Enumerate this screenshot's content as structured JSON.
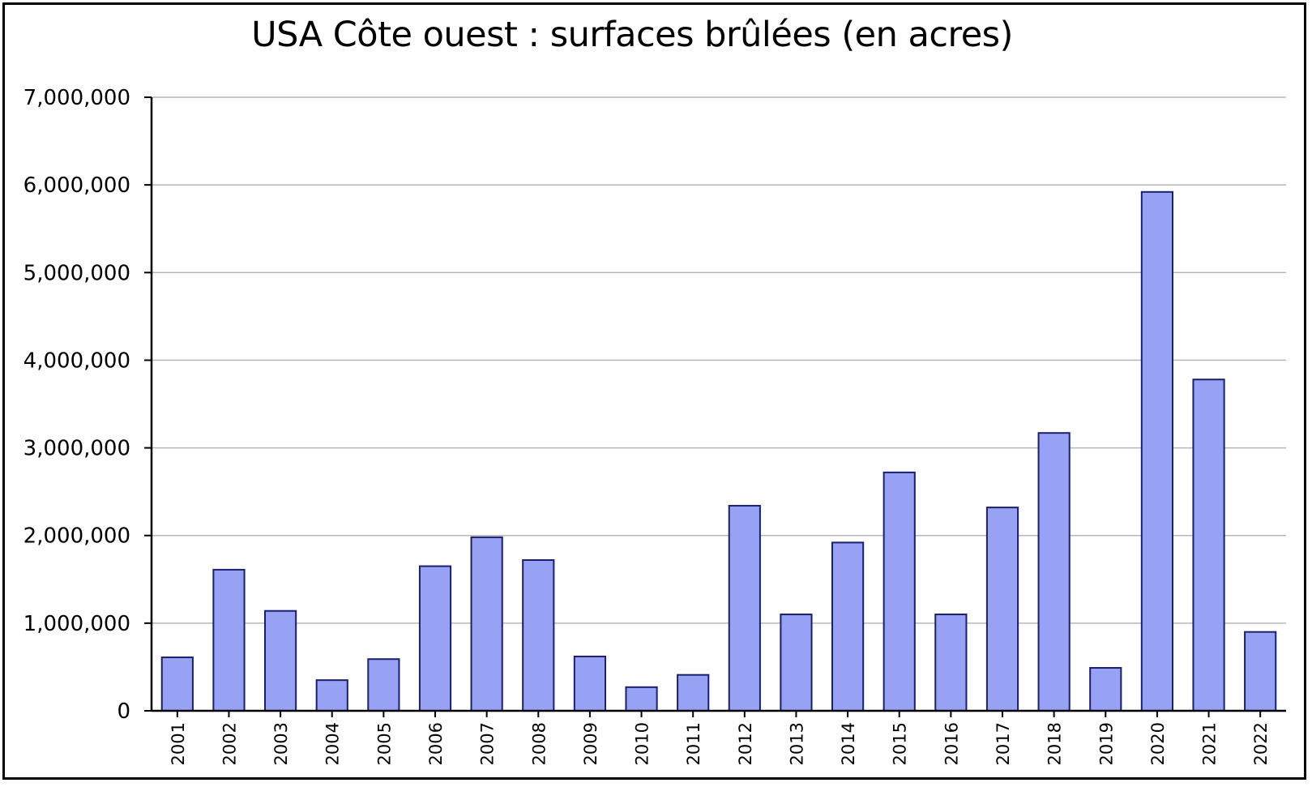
{
  "chart_data": {
    "type": "bar",
    "title": "USA Côte ouest : surfaces brûlées (en acres)",
    "xlabel": "",
    "ylabel": "",
    "ylim": [
      0,
      7000000
    ],
    "grid": true,
    "legend": "none",
    "yticks": [
      "0",
      "1,000,000",
      "2,000,000",
      "3,000,000",
      "4,000,000",
      "5,000,000",
      "6,000,000",
      "7,000,000"
    ],
    "categories": [
      "2001",
      "2002",
      "2003",
      "2004",
      "2005",
      "2006",
      "2007",
      "2008",
      "2009",
      "2010",
      "2011",
      "2012",
      "2013",
      "2014",
      "2015",
      "2016",
      "2017",
      "2018",
      "2019",
      "2020",
      "2021",
      "2022"
    ],
    "values": [
      610000,
      1610000,
      1140000,
      350000,
      590000,
      1650000,
      1980000,
      1720000,
      620000,
      270000,
      410000,
      2340000,
      1100000,
      1920000,
      2720000,
      1100000,
      2320000,
      3170000,
      490000,
      5920000,
      3780000,
      900000
    ],
    "colors": {
      "bar_fill": "#97a2f5",
      "bar_stroke": "#1a1f6e",
      "grid": "#b7b7b7",
      "axis": "#000000"
    }
  }
}
